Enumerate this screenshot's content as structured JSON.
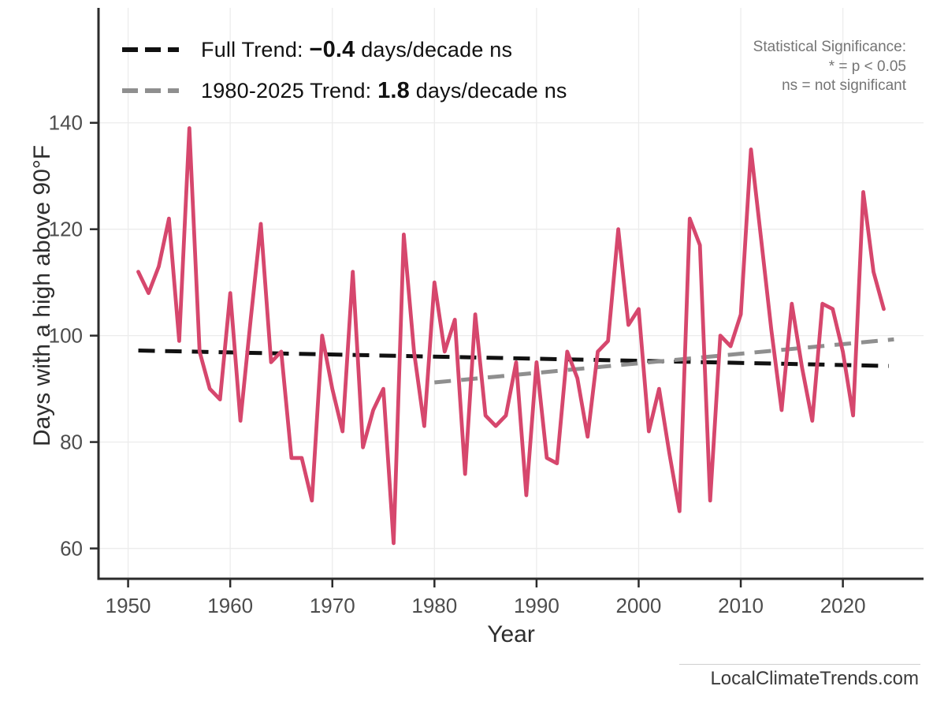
{
  "watermark": {
    "text": "LocalClimateTrends.com"
  },
  "significance_note": {
    "lines": [
      "Statistical Significance:",
      "* = p < 0.05",
      "ns = not significant"
    ]
  },
  "legend": {
    "items": [
      {
        "prefix": "Full Trend: ",
        "value": "−0.4",
        "suffix": " days/decade ns",
        "color": "#111111"
      },
      {
        "prefix": "1980-2025 Trend: ",
        "value": "1.8",
        "suffix": " days/decade ns",
        "color": "#8f8f8f"
      }
    ]
  },
  "chart_data": {
    "type": "line",
    "title": "",
    "xlabel": "Year",
    "ylabel": "Days with a high above 90°F",
    "x_ticks": [
      1950,
      1960,
      1970,
      1980,
      1990,
      2000,
      2010,
      2020
    ],
    "y_ticks": [
      60,
      80,
      100,
      120,
      140
    ],
    "xlim": [
      1947.1,
      2027.9
    ],
    "ylim": [
      54.3,
      161.6
    ],
    "grid": true,
    "legend_position": "top-left",
    "colors": {
      "series": "#d6476d",
      "full_trend": "#111111",
      "recent_trend": "#8f8f8f",
      "gridline": "#ececec",
      "axis": "#2b2b2b",
      "tick_label": "#4d4d4d"
    },
    "series": [
      {
        "name": "Days with a high above 90°F",
        "color": "#d6476d",
        "start_year": 1951,
        "values": [
          112,
          108,
          113,
          122,
          99,
          139,
          97,
          90,
          88,
          108,
          84,
          103,
          121,
          95,
          97,
          77,
          77,
          69,
          100,
          90,
          82,
          112,
          79,
          86,
          90,
          61,
          119,
          97,
          83,
          110,
          97,
          103,
          74,
          104,
          85,
          83,
          85,
          95,
          70,
          95,
          77,
          76,
          97,
          92,
          81,
          97,
          99,
          120,
          102,
          105,
          82,
          90,
          78,
          67,
          122,
          117,
          69,
          100,
          98,
          104,
          135,
          118,
          101,
          86,
          106,
          94,
          84,
          106,
          105,
          97,
          85,
          127,
          112,
          105
        ]
      }
    ],
    "trend_lines": [
      {
        "name": "Full Trend",
        "slope_days_per_decade": -0.4,
        "significance": "ns",
        "color": "#111111",
        "x": [
          1951,
          2024.5
        ],
        "y": [
          97.2,
          94.3
        ]
      },
      {
        "name": "1980-2025 Trend",
        "slope_days_per_decade": 1.8,
        "significance": "ns",
        "color": "#8f8f8f",
        "x": [
          1980,
          2025
        ],
        "y": [
          91.2,
          99.3
        ]
      }
    ]
  }
}
